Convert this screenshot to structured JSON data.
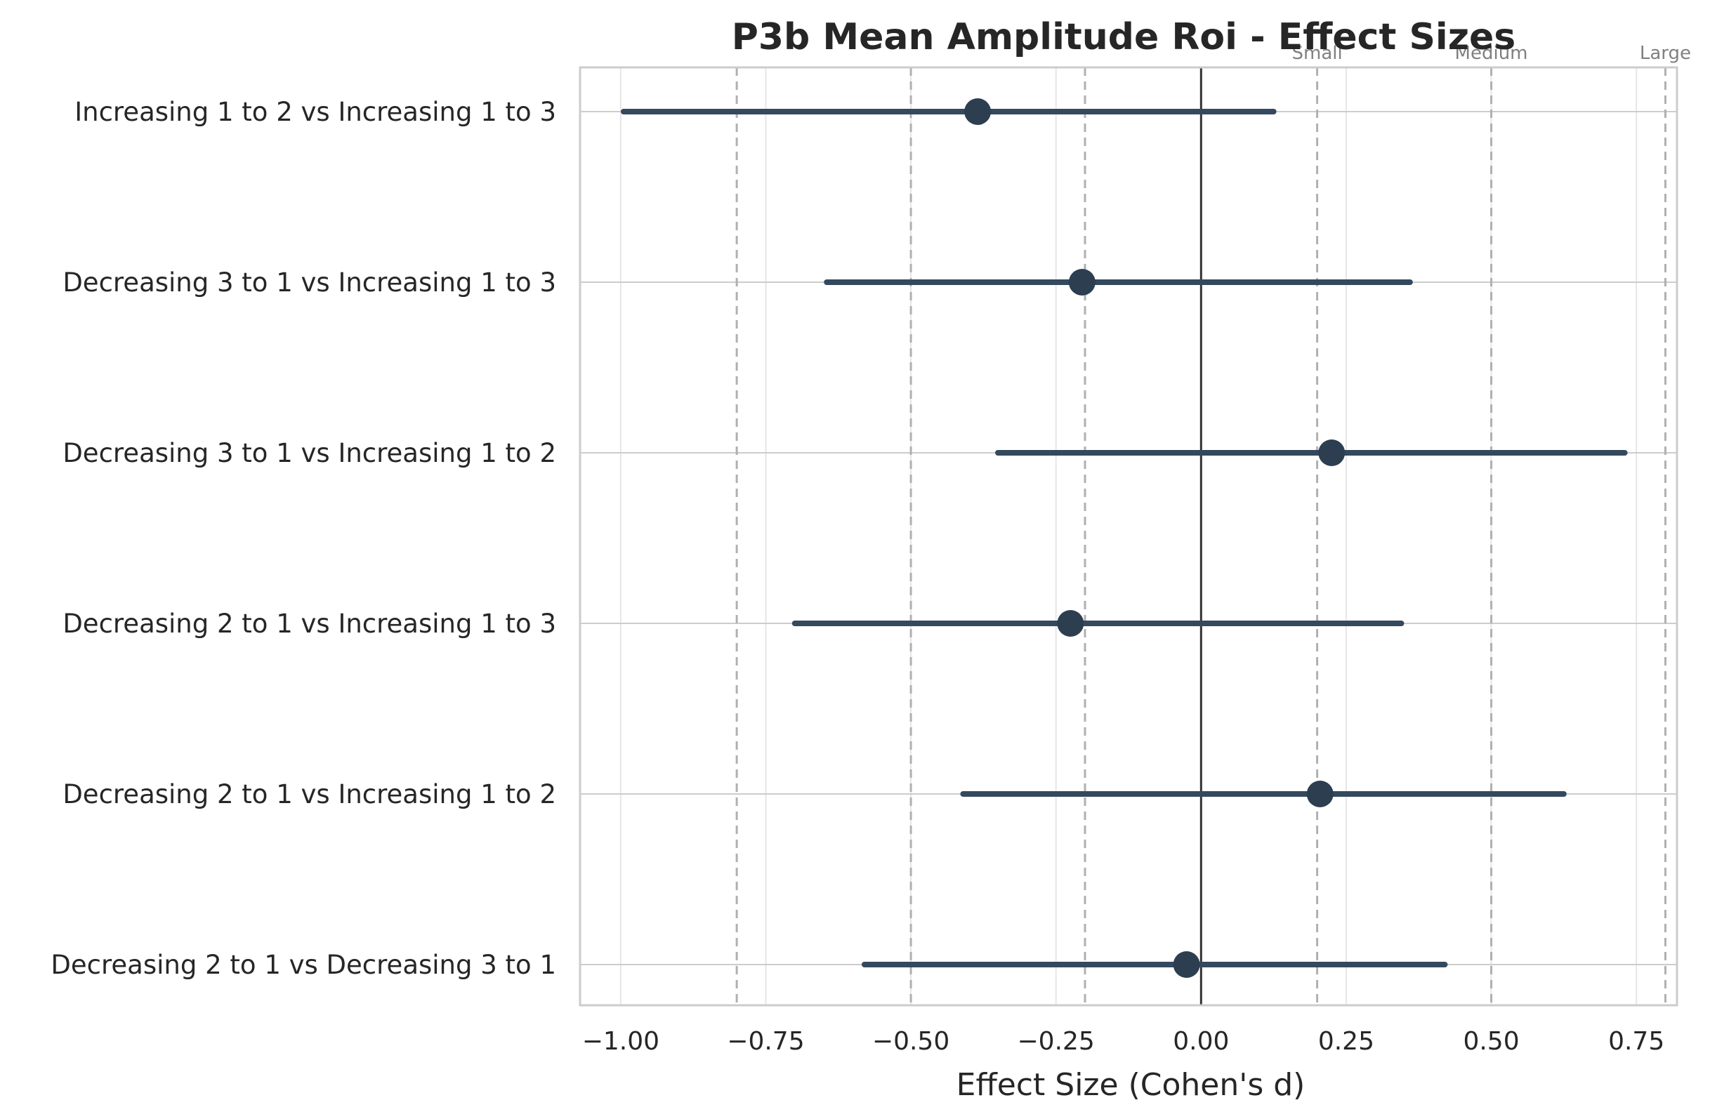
{
  "chart_data": {
    "type": "forest",
    "title": "P3b Mean Amplitude Roi - Effect Sizes",
    "xlabel": "Effect Size (Cohen's d)",
    "ylabel": "",
    "xlim": [
      -1.07,
      0.82
    ],
    "xticks": [
      -1.0,
      -0.75,
      -0.5,
      -0.25,
      0.0,
      0.25,
      0.5,
      0.75
    ],
    "xtick_labels": [
      "−1.00",
      "−0.75",
      "−0.50",
      "−0.25",
      "0.00",
      "0.25",
      "0.50",
      "0.75"
    ],
    "grid": true,
    "categories": [
      "Increasing 1 to 2 vs Increasing 1 to 3",
      "Decreasing 3 to 1 vs Increasing 1 to 3",
      "Decreasing 3 to 1 vs Increasing 1 to 2",
      "Decreasing 2 to 1 vs Increasing 1 to 3",
      "Decreasing 2 to 1 vs Increasing 1 to 2",
      "Decreasing 2 to 1 vs Decreasing 3 to 1"
    ],
    "estimates": [
      -0.385,
      -0.205,
      0.225,
      -0.225,
      0.205,
      -0.025
    ],
    "ci_lower": [
      -0.995,
      -0.645,
      -0.35,
      -0.7,
      -0.41,
      -0.58
    ],
    "ci_upper": [
      0.125,
      0.36,
      0.73,
      0.345,
      0.625,
      0.42
    ],
    "reference_lines": [
      {
        "x": -0.8,
        "label": ""
      },
      {
        "x": -0.5,
        "label": ""
      },
      {
        "x": -0.2,
        "label": ""
      },
      {
        "x": 0.2,
        "label": "Small"
      },
      {
        "x": 0.5,
        "label": "Medium"
      },
      {
        "x": 0.8,
        "label": "Large"
      }
    ],
    "zero_line": 0.0,
    "colors": {
      "marker": "#2c3e50",
      "ci_line": "#34495e",
      "zero_line": "#333333",
      "reference_line": "#b0b0b0",
      "grid": "#e6e6e6",
      "category_grid": "#cccccc",
      "frame": "#cccccc"
    }
  }
}
